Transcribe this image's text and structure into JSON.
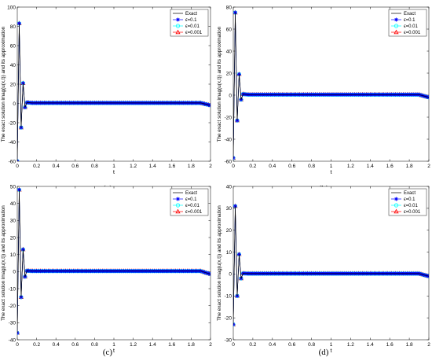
{
  "colors": {
    "exact": "#000000",
    "eps1": "#0000ff",
    "eps2": "#00ffff",
    "eps3": "#ff0000",
    "axes": "#262626"
  },
  "chart_data": [
    {
      "type": "line",
      "caption": "(a)",
      "xlabel": "t",
      "ylabel": "The exact solution imag(u(x,t)) and its approximation",
      "xlim": [
        0,
        2
      ],
      "ylim": [
        -60,
        100
      ],
      "xticks": [
        "0",
        "0.2",
        "0.4",
        "0.6",
        "0.8",
        "1",
        "1.2",
        "1.4",
        "1.6",
        "1.8",
        "2"
      ],
      "yticks": [
        "-60",
        "-40",
        "-20",
        "0",
        "20",
        "40",
        "60",
        "80",
        "100"
      ],
      "legend_position": "top-right",
      "series": [
        {
          "name": "Exact",
          "marker": "none",
          "color": "#000000",
          "x": [
            0,
            0.02,
            0.04,
            0.06,
            0.08,
            0.1,
            0.15,
            0.2,
            1.0,
            1.9,
            2.0
          ],
          "y": [
            -60,
            83,
            -25,
            21,
            -4,
            1,
            0.5,
            0.5,
            0.5,
            0.5,
            -2
          ]
        },
        {
          "name": "ϵ=0.1",
          "marker": "star",
          "color": "#0000ff",
          "x": [
            0,
            0.02,
            0.04,
            0.06,
            0.08,
            0.1,
            0.15,
            0.2,
            1.0,
            1.9,
            2.0
          ],
          "y": [
            -60,
            83,
            -25,
            21,
            -4,
            1,
            0.5,
            0.5,
            0.5,
            0.5,
            -2
          ]
        },
        {
          "name": "ϵ=0.01",
          "marker": "circle",
          "color": "#00ffff",
          "x": [
            0,
            0.02,
            0.04,
            0.06,
            0.08,
            0.1,
            0.15,
            0.2,
            1.0,
            1.9,
            2.0
          ],
          "y": [
            -60,
            83,
            -25,
            21,
            -4,
            1,
            0.5,
            0.5,
            0.5,
            0.5,
            -2
          ]
        },
        {
          "name": "ϵ=0.001",
          "marker": "triangle",
          "color": "#ff0000",
          "x": [
            0,
            0.02,
            0.04,
            0.06,
            0.08,
            0.1,
            0.15,
            0.2,
            1.0,
            1.9,
            2.0
          ],
          "y": [
            -60,
            83,
            -25,
            21,
            -4,
            1,
            0.5,
            0.5,
            0.5,
            0.5,
            -2
          ]
        }
      ]
    },
    {
      "type": "line",
      "caption": "(b)",
      "xlabel": "t",
      "ylabel": "The exact solution imag(u(x,t)) and its approximation",
      "xlim": [
        0,
        2
      ],
      "ylim": [
        -60,
        80
      ],
      "xticks": [
        "0",
        "0.2",
        "0.4",
        "0.6",
        "0.8",
        "1",
        "1.2",
        "1.4",
        "1.6",
        "1.8",
        "2"
      ],
      "yticks": [
        "-60",
        "-40",
        "-20",
        "0",
        "20",
        "40",
        "60",
        "80"
      ],
      "legend_position": "top-right",
      "series": [
        {
          "name": "Exact",
          "marker": "none",
          "color": "#000000",
          "x": [
            0,
            0.02,
            0.04,
            0.06,
            0.08,
            0.1,
            0.15,
            0.2,
            1.0,
            1.9,
            2.0
          ],
          "y": [
            -57,
            75,
            -23,
            19,
            -4,
            1,
            0.5,
            0.5,
            0.5,
            0.5,
            -2
          ]
        },
        {
          "name": "ϵ=0.1",
          "marker": "star",
          "color": "#0000ff",
          "x": [
            0,
            0.02,
            0.04,
            0.06,
            0.08,
            0.1,
            0.15,
            0.2,
            1.0,
            1.9,
            2.0
          ],
          "y": [
            -57,
            75,
            -23,
            19,
            -4,
            1,
            0.5,
            0.5,
            0.5,
            0.5,
            -2
          ]
        },
        {
          "name": "ϵ=0.01",
          "marker": "circle",
          "color": "#00ffff",
          "x": [
            0,
            0.02,
            0.04,
            0.06,
            0.08,
            0.1,
            0.15,
            0.2,
            1.0,
            1.9,
            2.0
          ],
          "y": [
            -57,
            75,
            -23,
            19,
            -4,
            1,
            0.5,
            0.5,
            0.5,
            0.5,
            -2
          ]
        },
        {
          "name": "ϵ=0.001",
          "marker": "triangle",
          "color": "#ff0000",
          "x": [
            0,
            0.02,
            0.04,
            0.06,
            0.08,
            0.1,
            0.15,
            0.2,
            1.0,
            1.9,
            2.0
          ],
          "y": [
            -57,
            75,
            -23,
            19,
            -4,
            1,
            0.5,
            0.5,
            0.5,
            0.5,
            -2
          ]
        }
      ]
    },
    {
      "type": "line",
      "caption": "(c)",
      "xlabel": "t",
      "ylabel": "The exact solution imag(u(x,t)) and its approximation",
      "xlim": [
        0,
        2
      ],
      "ylim": [
        -40,
        50
      ],
      "xticks": [
        "0",
        "0.2",
        "0.4",
        "0.6",
        "0.8",
        "1",
        "1.2",
        "1.4",
        "1.6",
        "1.8",
        "2"
      ],
      "yticks": [
        "-40",
        "-30",
        "-20",
        "-10",
        "0",
        "10",
        "20",
        "30",
        "40",
        "50"
      ],
      "legend_position": "top-right",
      "series": [
        {
          "name": "Exact",
          "marker": "none",
          "color": "#000000",
          "x": [
            0,
            0.02,
            0.04,
            0.06,
            0.08,
            0.1,
            0.15,
            0.2,
            1.0,
            1.9,
            2.0
          ],
          "y": [
            -36,
            48,
            -15,
            13,
            -3,
            0.5,
            0.3,
            0.3,
            0.3,
            0.3,
            -1.5
          ]
        },
        {
          "name": "ϵ=0.1",
          "marker": "star",
          "color": "#0000ff",
          "x": [
            0,
            0.02,
            0.04,
            0.06,
            0.08,
            0.1,
            0.15,
            0.2,
            1.0,
            1.9,
            2.0
          ],
          "y": [
            -36,
            48,
            -15,
            13,
            -3,
            0.5,
            0.3,
            0.3,
            0.3,
            0.3,
            -1.5
          ]
        },
        {
          "name": "ϵ=0.01",
          "marker": "circle",
          "color": "#00ffff",
          "x": [
            0,
            0.02,
            0.04,
            0.06,
            0.08,
            0.1,
            0.15,
            0.2,
            1.0,
            1.9,
            2.0
          ],
          "y": [
            -36,
            48,
            -15,
            13,
            -3,
            0.5,
            0.3,
            0.3,
            0.3,
            0.3,
            -1.5
          ]
        },
        {
          "name": "ϵ=0.001",
          "marker": "triangle",
          "color": "#ff0000",
          "x": [
            0,
            0.02,
            0.04,
            0.06,
            0.08,
            0.1,
            0.15,
            0.2,
            1.0,
            1.9,
            2.0
          ],
          "y": [
            -36,
            48,
            -15,
            13,
            -3,
            0.5,
            0.3,
            0.3,
            0.3,
            0.3,
            -1.5
          ]
        }
      ]
    },
    {
      "type": "line",
      "caption": "(d)",
      "xlabel": "t",
      "ylabel": "The exact solution imag(u(x,t)) and its approximation",
      "xlim": [
        0,
        2
      ],
      "ylim": [
        -30,
        40
      ],
      "xticks": [
        "0",
        "0.2",
        "0.4",
        "0.6",
        "0.8",
        "1",
        "1.2",
        "1.4",
        "1.6",
        "1.8",
        "2"
      ],
      "yticks": [
        "-30",
        "-20",
        "-10",
        "0",
        "10",
        "20",
        "30",
        "40"
      ],
      "legend_position": "top-right",
      "series": [
        {
          "name": "Exact",
          "marker": "none",
          "color": "#000000",
          "x": [
            0,
            0.02,
            0.04,
            0.06,
            0.08,
            0.1,
            0.15,
            0.2,
            1.0,
            1.9,
            2.0
          ],
          "y": [
            -23,
            31,
            -10,
            9,
            -2,
            0.3,
            0.2,
            0.2,
            0.2,
            0.2,
            -1
          ]
        },
        {
          "name": "ϵ=0.1",
          "marker": "star",
          "color": "#0000ff",
          "x": [
            0,
            0.02,
            0.04,
            0.06,
            0.08,
            0.1,
            0.15,
            0.2,
            1.0,
            1.9,
            2.0
          ],
          "y": [
            -23,
            31,
            -10,
            9,
            -2,
            0.3,
            0.2,
            0.2,
            0.2,
            0.2,
            -1
          ]
        },
        {
          "name": "ϵ=0.01",
          "marker": "circle",
          "color": "#00ffff",
          "x": [
            0,
            0.02,
            0.04,
            0.06,
            0.08,
            0.1,
            0.15,
            0.2,
            1.0,
            1.9,
            2.0
          ],
          "y": [
            -23,
            31,
            -10,
            9,
            -2,
            0.3,
            0.2,
            0.2,
            0.2,
            0.2,
            -1
          ]
        },
        {
          "name": "ϵ=0.001",
          "marker": "triangle",
          "color": "#ff0000",
          "x": [
            0,
            0.02,
            0.04,
            0.06,
            0.08,
            0.1,
            0.15,
            0.2,
            1.0,
            1.9,
            2.0
          ],
          "y": [
            -23,
            31,
            -10,
            9,
            -2,
            0.3,
            0.2,
            0.2,
            0.2,
            0.2,
            -1
          ]
        }
      ]
    }
  ]
}
